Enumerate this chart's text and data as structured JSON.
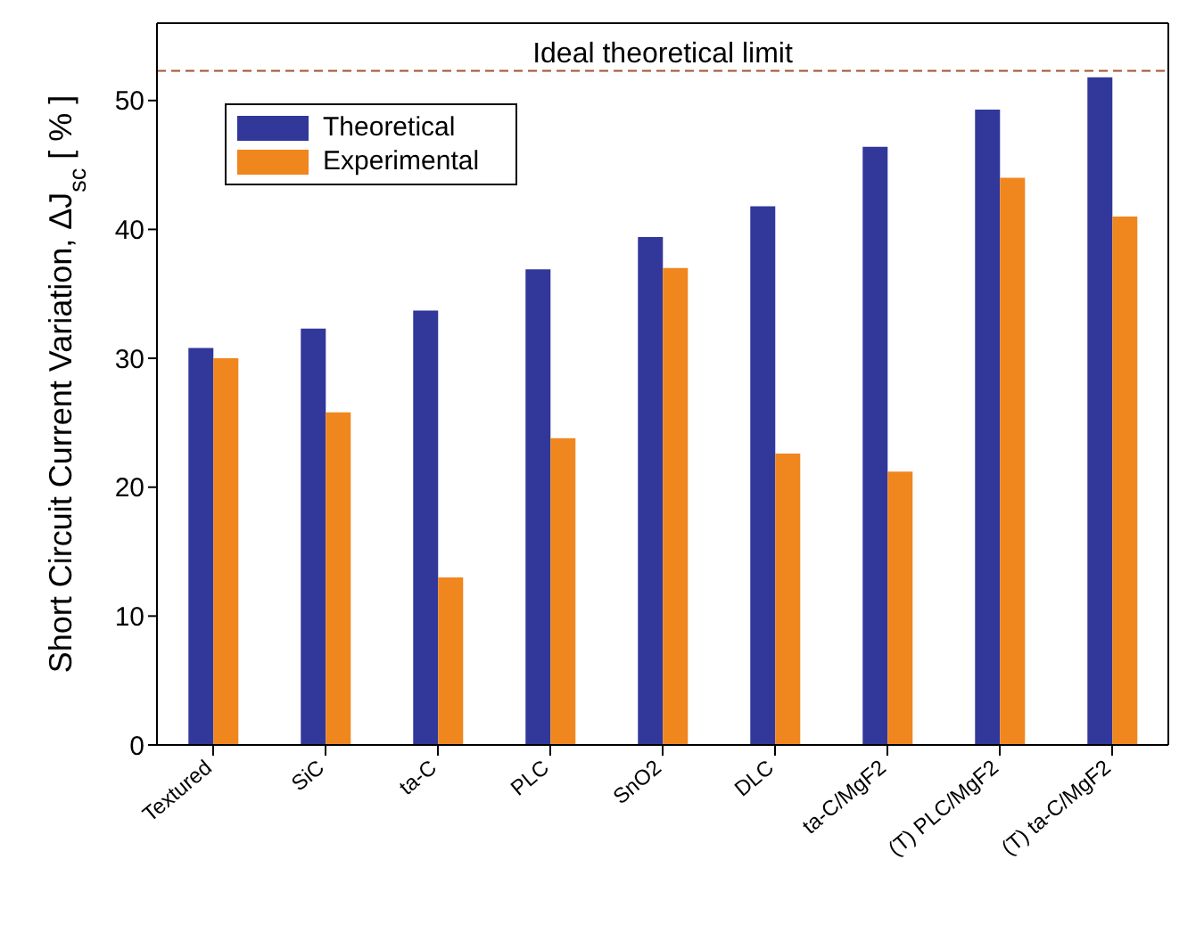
{
  "chart_data": {
    "type": "bar",
    "ylabel": "Short Circuit Current Variation, ΔJ$_{sc}$ [ % ]",
    "categories": [
      "Textured",
      "SiC",
      "ta-C",
      "PLC",
      "SnO2",
      "DLC",
      "ta-C/MgF2",
      "(T) PLC/MgF2",
      "(T) ta-C/MgF2"
    ],
    "series": [
      {
        "name": "Theoretical",
        "color": "#32379a",
        "values": [
          30.8,
          32.3,
          33.7,
          36.9,
          39.4,
          41.8,
          46.4,
          49.3,
          51.8
        ]
      },
      {
        "name": "Experimental",
        "color": "#f0861e",
        "values": [
          30.0,
          25.8,
          13.0,
          23.8,
          37.0,
          22.6,
          21.2,
          44.0,
          41.0
        ]
      }
    ],
    "ylim": [
      0,
      56
    ],
    "yticks": [
      0,
      10,
      20,
      30,
      40,
      50
    ],
    "grid": false,
    "legend": "top left",
    "ref_lines": [
      {
        "axis": "y",
        "value": 52.3,
        "label": "Ideal theoretical limit",
        "color": "#a0522d",
        "line_style": "dashed"
      }
    ]
  }
}
